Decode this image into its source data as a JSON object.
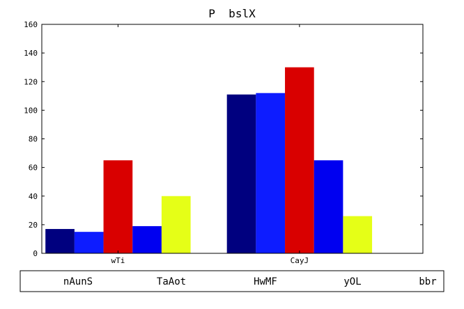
{
  "chart_data": {
    "type": "bar",
    "title": "P  bslX",
    "xlabel": "",
    "ylabel": "",
    "categories": [
      "wTi",
      "CayJ"
    ],
    "ylim": [
      0,
      160
    ],
    "yticks": [
      0,
      20,
      40,
      60,
      80,
      100,
      120,
      140,
      160
    ],
    "grid": false,
    "legend_position": "bottom",
    "series": [
      {
        "name": "nAunS",
        "color": "#00007f",
        "values": [
          17,
          111
        ]
      },
      {
        "name": "TaAot",
        "color": "#0d1cff",
        "values": [
          15,
          112
        ]
      },
      {
        "name": "HwMF",
        "color": "#d90000",
        "values": [
          65,
          130
        ]
      },
      {
        "name": "yOL",
        "color": "#0000f0",
        "values": [
          19,
          65
        ]
      },
      {
        "name": "bbr",
        "color": "#e5ff17",
        "values": [
          40,
          26
        ]
      }
    ]
  }
}
